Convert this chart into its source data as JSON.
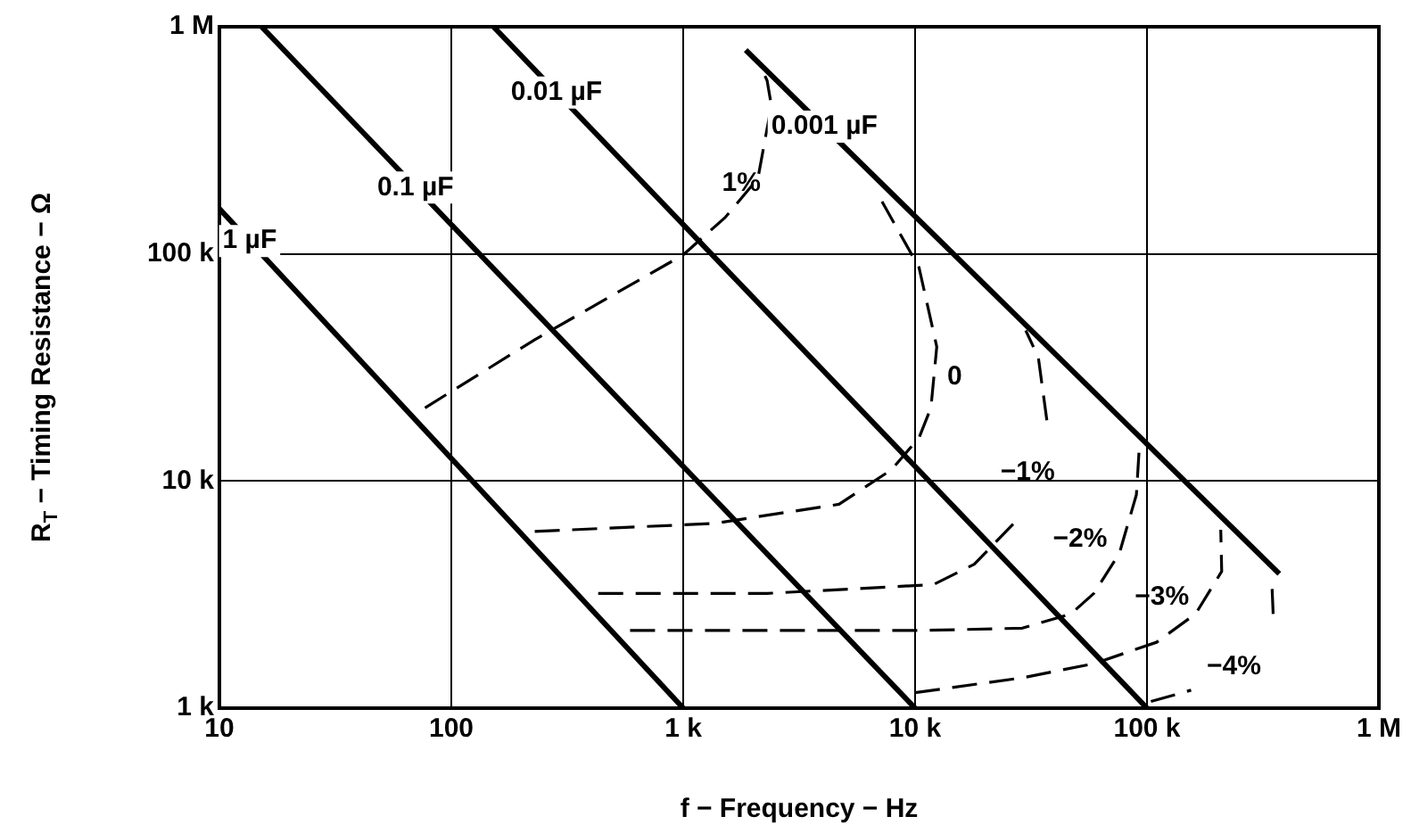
{
  "chart_data": {
    "type": "line",
    "xlabel": "f − Frequency − Hz",
    "ylabel": "R$_{T}$ − Timing Resistance − Ω",
    "log": "xy",
    "grid": true,
    "legend": false,
    "marker": "none",
    "xlim": [
      10,
      1000000
    ],
    "ylim": [
      1000,
      1000000
    ],
    "xticks": [
      10,
      100,
      {
        "value": 1000,
        "label": "1 k"
      },
      {
        "value": 10000,
        "label": "10 k"
      },
      {
        "value": 100000,
        "label": "100 k"
      },
      {
        "value": 1000000,
        "label": "1 M"
      }
    ],
    "yticks": [
      {
        "value": 1000,
        "label": "1 k"
      },
      {
        "value": 10000,
        "label": "10 k"
      },
      {
        "value": 100000,
        "label": "100 k"
      },
      {
        "value": 1000000,
        "label": "1 M"
      }
    ],
    "series": [
      {
        "color": "#000000",
        "line_style": "solid",
        "x": [
          10,
          1000
        ],
        "values": [
          158000,
          1000
        ]
      },
      {
        "color": "#000000",
        "line_style": "solid",
        "x": [
          15.2,
          10000
        ],
        "values": [
          1000000,
          1000
        ]
      },
      {
        "color": "#000000",
        "line_style": "solid",
        "x": [
          152,
          100000
        ],
        "values": [
          1000000,
          1000
        ]
      },
      {
        "color": "#000000",
        "line_style": "solid",
        "x": [
          1860,
          372000
        ],
        "values": [
          790000,
          3900
        ]
      },
      {
        "name": "1%",
        "color": "#000000",
        "line_style": "dashed",
        "x": [
          77,
          230,
          1000,
          1520,
          2100,
          2400,
          2300,
          2200
        ],
        "values": [
          21000,
          42000,
          99000,
          145000,
          215000,
          450000,
          580000,
          640000
        ]
      },
      {
        "name": "0",
        "color": "#000000",
        "line_style": "dashed",
        "x": [
          229,
          1350,
          4700,
          7900,
          10400,
          11700,
          12400,
          10400,
          7200
        ],
        "values": [
          6000,
          6500,
          7900,
          11200,
          15500,
          21000,
          39000,
          87000,
          170000
        ]
      },
      {
        "name": "−1%",
        "color": "#000000",
        "line_style": "dashed",
        "x": [
          430,
          2300,
          12000,
          18000,
          27000,
          35000,
          37000,
          34000,
          30000
        ],
        "values": [
          3200,
          3200,
          3500,
          4300,
          6600,
          null,
          18500,
          35000,
          46000
        ]
      },
      {
        "name": "−2%",
        "color": "#000000",
        "line_style": "dashed",
        "x": [
          590,
          1930,
          11200,
          29000,
          47000,
          59000,
          76000,
          90000,
          93000
        ],
        "values": [
          2200,
          2200,
          2200,
          2250,
          2600,
          3200,
          4800,
          8700,
          15000
        ]
      },
      {
        "name": "−3%",
        "color": "#000000",
        "line_style": "dashed",
        "x": [
          10000,
          29000,
          59000,
          110000,
          162000,
          210000,
          208000
        ],
        "values": [
          1170,
          1360,
          1570,
          1950,
          2600,
          4000,
          6100
        ]
      },
      {
        "name": "−4%",
        "color": "#000000",
        "line_style": "dashed",
        "x": [
          104000,
          155000,
          275000,
          350000,
          345000
        ],
        "values": [
          1070,
          1200,
          null,
          2600,
          3700
        ]
      }
    ],
    "annotations": [
      {
        "text": "1 µF",
        "x": 13.5,
        "y": 114000
      },
      {
        "text": "0.1 µF",
        "x": 70,
        "y": 196000
      },
      {
        "text": "0.01 µF",
        "x": 284,
        "y": 513000
      },
      {
        "text": "0.001 µF",
        "x": 4060,
        "y": 363000
      }
    ]
  }
}
